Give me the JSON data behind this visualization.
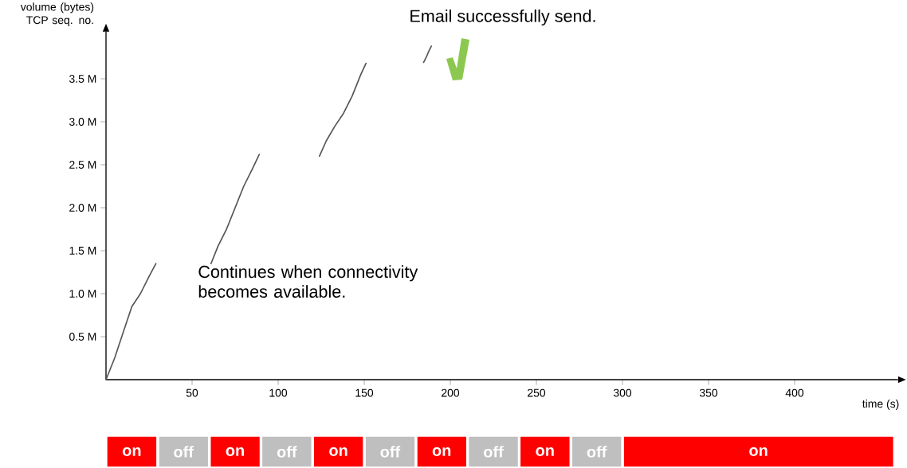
{
  "chart_data": [
    {
      "type": "line",
      "xlabel": "time (s)",
      "ylabel": "volume (bytes) TCP seq. no.",
      "annotations": [
        "Email successfully send.",
        "Continues when connectivity becomes available."
      ],
      "x": [
        0,
        5,
        10,
        15,
        20,
        25,
        29,
        45,
        61,
        65,
        70,
        75,
        80,
        85,
        89,
        107,
        124,
        128,
        133,
        138,
        143,
        148,
        151,
        170,
        184.5,
        186,
        187.5,
        189
      ],
      "series": [
        {
          "color": "#555555",
          "values": [
            0,
            0.25,
            0.55,
            0.85,
            1.0,
            1.2,
            1.35,
            null,
            1.35,
            1.55,
            1.75,
            2.0,
            2.25,
            2.45,
            2.62,
            null,
            2.6,
            2.78,
            2.95,
            3.1,
            3.3,
            3.55,
            3.68,
            null,
            3.69,
            3.75,
            3.82,
            3.88
          ]
        }
      ],
      "xlim": [
        0,
        460
      ],
      "ylim": [
        0,
        4.05
      ],
      "xticks": [
        50,
        100,
        150,
        200,
        250,
        300,
        350,
        400
      ],
      "yticks": [
        {
          "value": 0.5,
          "label": "0.5 M"
        },
        {
          "value": 1.0,
          "label": "1.0 M"
        },
        {
          "value": 1.5,
          "label": "1.5 M"
        },
        {
          "value": 2.0,
          "label": "2.0 M"
        },
        {
          "value": 2.5,
          "label": "2.5 M"
        },
        {
          "value": 3.0,
          "label": "3.0 M"
        },
        {
          "value": 3.5,
          "label": "3.5 M"
        }
      ]
    },
    {
      "type": "bar",
      "orientation": "horizontal",
      "stacked": true,
      "categories": [
        null
      ],
      "xlim": [
        0,
        460
      ],
      "tick_labels": false,
      "series": [
        {
          "color": "#ff0000",
          "values": [
            30
          ],
          "value_labels": [
            "on"
          ]
        },
        {
          "color": "#bfbfbf",
          "values": [
            30
          ],
          "value_labels": [
            "off"
          ]
        },
        {
          "color": "#ff0000",
          "values": [
            30
          ],
          "value_labels": [
            "on"
          ]
        },
        {
          "color": "#bfbfbf",
          "values": [
            30
          ],
          "value_labels": [
            "off"
          ]
        },
        {
          "color": "#ff0000",
          "values": [
            30
          ],
          "value_labels": [
            "on"
          ]
        },
        {
          "color": "#bfbfbf",
          "values": [
            30
          ],
          "value_labels": [
            "off"
          ]
        },
        {
          "color": "#ff0000",
          "values": [
            30
          ],
          "value_labels": [
            "on"
          ]
        },
        {
          "color": "#bfbfbf",
          "values": [
            30
          ],
          "value_labels": [
            "off"
          ]
        },
        {
          "color": "#ff0000",
          "values": [
            30
          ],
          "value_labels": [
            "on"
          ]
        },
        {
          "color": "#bfbfbf",
          "values": [
            30
          ],
          "value_labels": [
            "off"
          ]
        },
        {
          "color": "#ff0000",
          "values": [
            158
          ],
          "value_labels": [
            "on"
          ]
        }
      ]
    }
  ]
}
